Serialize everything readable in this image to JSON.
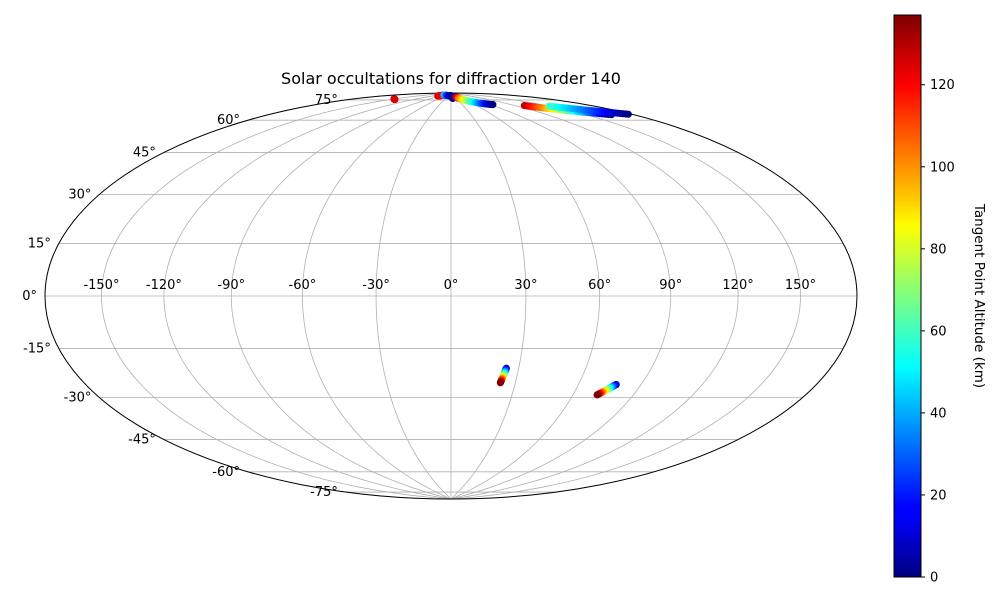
{
  "chart_data": {
    "type": "scatter",
    "projection": "hammer",
    "title": "Solar occultations for diffraction order 140",
    "grid": true,
    "lon_ticks": [
      -150,
      -120,
      -90,
      -60,
      -30,
      0,
      30,
      60,
      90,
      120,
      150
    ],
    "lon_tick_labels": [
      "-150°",
      "-120°",
      "-90°",
      "-60°",
      "-30°",
      "0°",
      "30°",
      "60°",
      "90°",
      "120°",
      "150°"
    ],
    "lat_ticks": [
      75,
      60,
      45,
      30,
      15,
      0,
      -15,
      -30,
      -45,
      -60,
      -75
    ],
    "lat_tick_labels": [
      "75°",
      "60°",
      "45°",
      "30°",
      "15°",
      "0°",
      "-15°",
      "-30°",
      "-45°",
      "-60°",
      "-75°"
    ],
    "colormap": "jet",
    "colorbar": {
      "label": "Tangent Point Altitude (km)",
      "range": [
        0,
        137
      ],
      "ticks": [
        0,
        20,
        40,
        60,
        80,
        100,
        120
      ],
      "tick_labels": [
        "0",
        "20",
        "40",
        "60",
        "80",
        "100",
        "120"
      ]
    },
    "tracks": [
      {
        "lon_start": -150,
        "lat_start": 81.5,
        "alt_start": 130,
        "lon_end": -146,
        "lat_end": 81.5,
        "alt_end": 125
      },
      {
        "lon_start": -99,
        "lat_start": 87.5,
        "alt_start": 125,
        "lon_end": -82,
        "lat_end": 88.5,
        "alt_end": 120
      },
      {
        "lon_start": -82,
        "lat_start": 88.5,
        "alt_start": 50,
        "lon_end": 1,
        "lat_end": 88.5,
        "alt_end": 0
      },
      {
        "lon_start": 10,
        "lat_start": 88,
        "alt_start": 5,
        "lon_end": 10,
        "lat_end": 87,
        "alt_end": 0
      },
      {
        "lon_start": 22,
        "lat_start": 88,
        "alt_start": 0,
        "lon_end": 28,
        "lat_end": 87.5,
        "alt_end": 10
      },
      {
        "lon_start": 35,
        "lat_start": 87.5,
        "alt_start": 130,
        "lon_end": 41,
        "lat_end": 87,
        "alt_end": 120
      },
      {
        "lon_start": 41,
        "lat_start": 87,
        "alt_start": 110,
        "lon_end": 94,
        "lat_end": 81.5,
        "alt_end": 0
      },
      {
        "lon_start": 130,
        "lat_start": 78,
        "alt_start": 130,
        "lon_end": 167,
        "lat_end": 66,
        "alt_end": 0
      },
      {
        "lon_start": 150,
        "lat_start": 75,
        "alt_start": 60,
        "lon_end": 178,
        "lat_end": 64,
        "alt_end": 0
      },
      {
        "lon_start": 24.5,
        "lat_start": -29,
        "alt_start": 5,
        "lon_end": 23,
        "lat_end": -35,
        "alt_end": 137
      },
      {
        "lon_start": 78,
        "lat_start": -34,
        "alt_start": 5,
        "lon_end": 72,
        "lat_end": -38.5,
        "alt_end": 137
      }
    ]
  }
}
